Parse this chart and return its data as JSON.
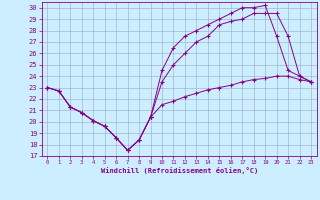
{
  "xlabel": "Windchill (Refroidissement éolien,°C)",
  "bg_color": "#cceeff",
  "line_color": "#880088",
  "grid_color": "#99aacc",
  "xlim": [
    -0.5,
    23.5
  ],
  "ylim": [
    17,
    30.5
  ],
  "xticks": [
    0,
    1,
    2,
    3,
    4,
    5,
    6,
    7,
    8,
    9,
    10,
    11,
    12,
    13,
    14,
    15,
    16,
    17,
    18,
    19,
    20,
    21,
    22,
    23
  ],
  "yticks": [
    17,
    18,
    19,
    20,
    21,
    22,
    23,
    24,
    25,
    26,
    27,
    28,
    29,
    30
  ],
  "line1": {
    "x": [
      0,
      1,
      2,
      3,
      4,
      5,
      6,
      7,
      8,
      9,
      10,
      11,
      12,
      13,
      14,
      15,
      16,
      17,
      18,
      19,
      20,
      21,
      22,
      23
    ],
    "y": [
      23.0,
      22.7,
      21.3,
      20.8,
      20.1,
      19.6,
      18.6,
      17.5,
      18.4,
      20.4,
      21.5,
      21.8,
      22.2,
      22.5,
      22.8,
      23.0,
      23.2,
      23.5,
      23.7,
      23.8,
      24.0,
      24.0,
      23.7,
      23.5
    ]
  },
  "line2": {
    "x": [
      0,
      1,
      2,
      3,
      4,
      5,
      6,
      7,
      8,
      9,
      10,
      11,
      12,
      13,
      14,
      15,
      16,
      17,
      18,
      19,
      20,
      21,
      22,
      23
    ],
    "y": [
      23.0,
      22.7,
      21.3,
      20.8,
      20.1,
      19.6,
      18.6,
      17.5,
      18.4,
      20.4,
      23.5,
      25.0,
      26.0,
      27.0,
      27.5,
      28.5,
      28.8,
      29.0,
      29.5,
      29.5,
      29.5,
      27.5,
      24.0,
      23.5
    ]
  },
  "line3": {
    "x": [
      0,
      1,
      2,
      3,
      4,
      5,
      6,
      7,
      8,
      9,
      10,
      11,
      12,
      13,
      14,
      15,
      16,
      17,
      18,
      19,
      20,
      21,
      22,
      23
    ],
    "y": [
      23.0,
      22.7,
      21.3,
      20.8,
      20.1,
      19.6,
      18.6,
      17.5,
      18.4,
      20.4,
      24.5,
      26.5,
      27.5,
      28.0,
      28.5,
      29.0,
      29.5,
      30.0,
      30.0,
      30.2,
      27.5,
      24.5,
      24.0,
      23.5
    ]
  }
}
